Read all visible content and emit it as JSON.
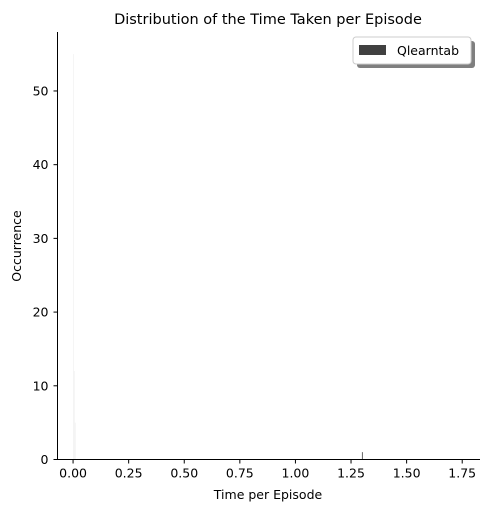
{
  "chart_data": {
    "type": "bar",
    "title": "Distribution of the Time Taken per Episode",
    "xlabel": "Time per Episode",
    "ylabel": "Occurrence",
    "xlim": [
      -0.07,
      1.83
    ],
    "ylim": [
      0,
      58
    ],
    "xticks": [
      "0.00",
      "0.25",
      "0.50",
      "0.75",
      "1.00",
      "1.25",
      "1.50",
      "1.75"
    ],
    "yticks": [
      "0",
      "10",
      "20",
      "30",
      "40",
      "50"
    ],
    "legend_position": "upper right",
    "grid": false,
    "series": [
      {
        "name": "Qlearntab",
        "color": "#404040",
        "bins": [
          {
            "x0": 0.0,
            "x1": 0.004,
            "count": 55
          },
          {
            "x0": 0.004,
            "x1": 0.008,
            "count": 12
          },
          {
            "x0": 0.008,
            "x1": 0.012,
            "count": 5
          },
          {
            "x0": 1.299,
            "x1": 1.303,
            "count": 1
          }
        ]
      }
    ]
  }
}
